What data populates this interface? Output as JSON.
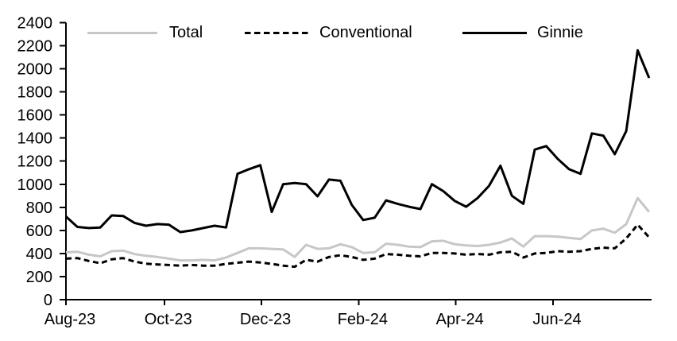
{
  "chart_data": {
    "type": "line",
    "title": "",
    "xlabel": "",
    "ylabel": "",
    "grid": false,
    "legend_position": "top",
    "x_unit": "weekly",
    "x_axis": {
      "tick_labels": [
        "Aug-23",
        "Oct-23",
        "Dec-23",
        "Feb-24",
        "Apr-24",
        "Jun-24"
      ],
      "tick_week_positions": [
        0,
        8.6,
        17.1,
        25.6,
        34.1,
        42.6
      ]
    },
    "y_axis": {
      "min": 0,
      "max": 2400,
      "step": 200,
      "tick_labels": [
        "0",
        "200",
        "400",
        "600",
        "800",
        "1000",
        "1200",
        "1400",
        "1600",
        "1800",
        "2000",
        "2200",
        "2400"
      ]
    },
    "series": [
      {
        "name": "Total",
        "color": "#c7c7c7",
        "style": "solid",
        "values": [
          410,
          415,
          390,
          375,
          420,
          425,
          395,
          380,
          370,
          355,
          340,
          340,
          345,
          340,
          365,
          405,
          445,
          445,
          440,
          435,
          370,
          475,
          440,
          445,
          480,
          455,
          405,
          410,
          485,
          475,
          460,
          455,
          505,
          510,
          480,
          470,
          465,
          475,
          495,
          530,
          460,
          550,
          550,
          545,
          535,
          525,
          600,
          615,
          580,
          655,
          880,
          760
        ]
      },
      {
        "name": "Conventional",
        "color": "#000000",
        "style": "dashed",
        "values": [
          355,
          360,
          335,
          315,
          350,
          360,
          330,
          312,
          305,
          300,
          295,
          300,
          295,
          295,
          310,
          320,
          330,
          322,
          310,
          295,
          285,
          345,
          330,
          370,
          385,
          370,
          345,
          355,
          395,
          390,
          380,
          375,
          405,
          405,
          400,
          390,
          395,
          390,
          410,
          415,
          365,
          400,
          405,
          420,
          415,
          420,
          440,
          450,
          445,
          530,
          650,
          540
        ]
      },
      {
        "name": "Ginnie",
        "color": "#000000",
        "style": "solid",
        "values": [
          720,
          630,
          620,
          625,
          730,
          725,
          665,
          640,
          655,
          650,
          585,
          600,
          620,
          640,
          625,
          1090,
          1130,
          1165,
          760,
          1000,
          1010,
          1000,
          895,
          1040,
          1030,
          820,
          690,
          710,
          860,
          830,
          805,
          785,
          1000,
          940,
          855,
          805,
          880,
          985,
          1160,
          900,
          830,
          1300,
          1330,
          1220,
          1130,
          1090,
          1440,
          1420,
          1260,
          1460,
          2160,
          1920
        ]
      }
    ]
  }
}
